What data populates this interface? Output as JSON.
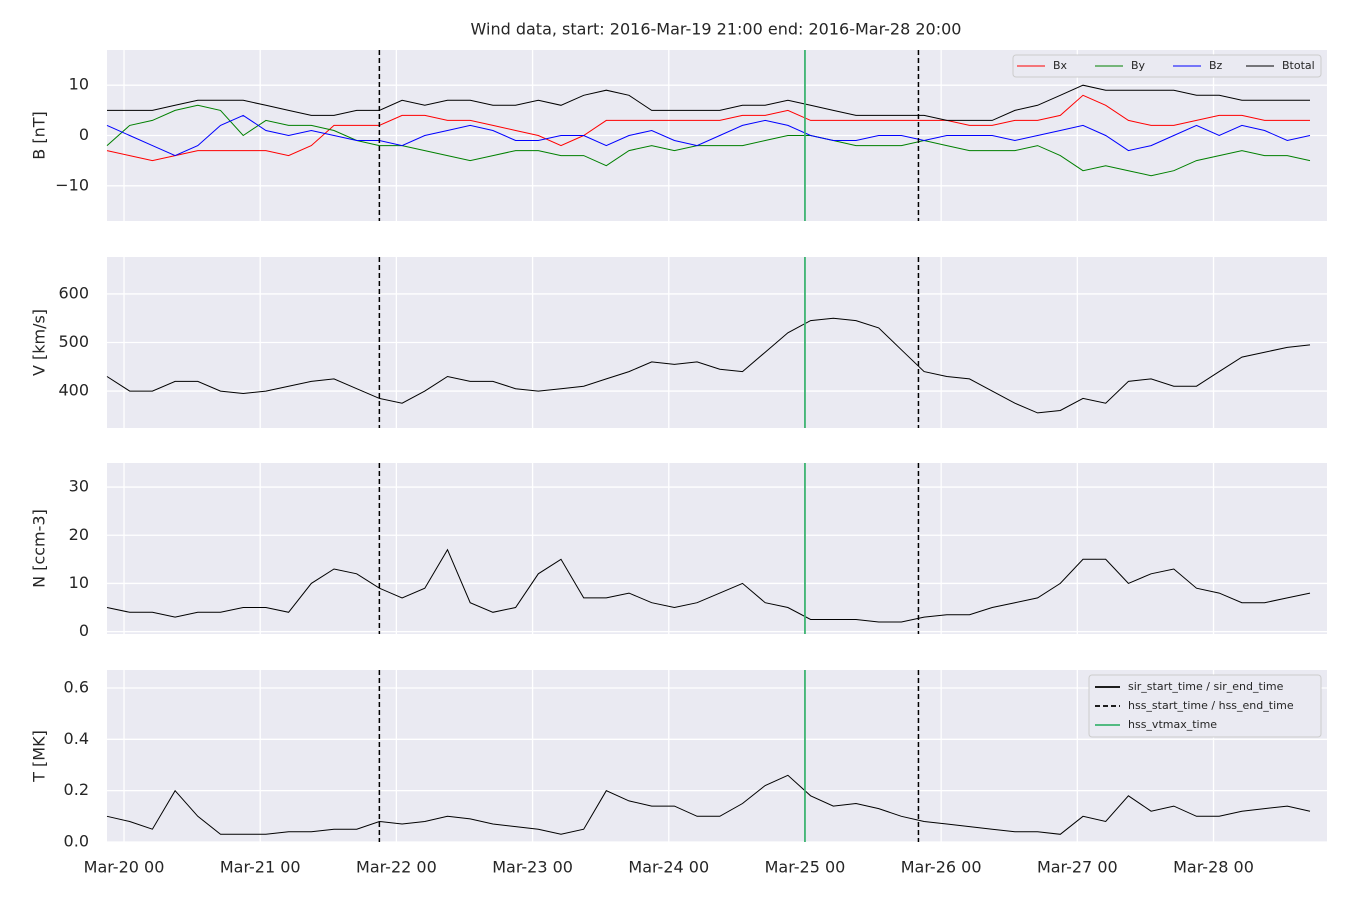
{
  "chart_data": [
    {
      "type": "line",
      "title": "Wind data, start: 2016-Mar-19 21:00  end: 2016-Mar-28 20:00",
      "ylabel": "B [nT]",
      "x": [
        "Mar-19 21",
        "Mar-20 01",
        "Mar-20 05",
        "Mar-20 09",
        "Mar-20 13",
        "Mar-20 17",
        "Mar-20 21",
        "Mar-21 01",
        "Mar-21 05",
        "Mar-21 09",
        "Mar-21 13",
        "Mar-21 17",
        "Mar-21 21",
        "Mar-22 01",
        "Mar-22 05",
        "Mar-22 09",
        "Mar-22 13",
        "Mar-22 17",
        "Mar-22 21",
        "Mar-23 01",
        "Mar-23 05",
        "Mar-23 09",
        "Mar-23 13",
        "Mar-23 17",
        "Mar-23 21",
        "Mar-24 01",
        "Mar-24 05",
        "Mar-24 09",
        "Mar-24 13",
        "Mar-24 17",
        "Mar-24 21",
        "Mar-25 01",
        "Mar-25 05",
        "Mar-25 09",
        "Mar-25 13",
        "Mar-25 17",
        "Mar-25 21",
        "Mar-26 01",
        "Mar-26 05",
        "Mar-26 09",
        "Mar-26 13",
        "Mar-26 17",
        "Mar-26 21",
        "Mar-27 01",
        "Mar-27 05",
        "Mar-27 09",
        "Mar-27 13",
        "Mar-27 17",
        "Mar-27 21",
        "Mar-28 01",
        "Mar-28 05",
        "Mar-28 09",
        "Mar-28 13",
        "Mar-28 17"
      ],
      "xlim": [
        "Mar-19 21",
        "Mar-28 20"
      ],
      "series": [
        {
          "name": "Bx",
          "color": "#ff0000",
          "values": [
            -3,
            -4,
            -5,
            -4,
            -3,
            -3,
            -3,
            -3,
            -4,
            -2,
            2,
            2,
            2,
            4,
            4,
            3,
            3,
            2,
            1,
            0,
            -2,
            0,
            3,
            3,
            3,
            3,
            3,
            3,
            4,
            4,
            5,
            3,
            3,
            3,
            3,
            3,
            3,
            3,
            2,
            2,
            3,
            3,
            4,
            8,
            6,
            3,
            2,
            2,
            3,
            4,
            4,
            3,
            3,
            3
          ]
        },
        {
          "name": "By",
          "color": "#008000",
          "values": [
            -2,
            2,
            3,
            5,
            6,
            5,
            0,
            3,
            2,
            2,
            1,
            -1,
            -2,
            -2,
            -3,
            -4,
            -5,
            -4,
            -3,
            -3,
            -4,
            -4,
            -6,
            -3,
            -2,
            -3,
            -2,
            -2,
            -2,
            -1,
            0,
            0,
            -1,
            -2,
            -2,
            -2,
            -1,
            -2,
            -3,
            -3,
            -3,
            -2,
            -4,
            -7,
            -6,
            -7,
            -8,
            -7,
            -5,
            -4,
            -3,
            -4,
            -4,
            -5
          ]
        },
        {
          "name": "Bz",
          "color": "#0000ff",
          "values": [
            2,
            0,
            -2,
            -4,
            -2,
            2,
            4,
            1,
            0,
            1,
            0,
            -1,
            -1,
            -2,
            0,
            1,
            2,
            1,
            -1,
            -1,
            0,
            0,
            -2,
            0,
            1,
            -1,
            -2,
            0,
            2,
            3,
            2,
            0,
            -1,
            -1,
            0,
            0,
            -1,
            0,
            0,
            0,
            -1,
            0,
            1,
            2,
            0,
            -3,
            -2,
            0,
            2,
            0,
            2,
            1,
            -1,
            0
          ]
        },
        {
          "name": "Btotal",
          "color": "#000000",
          "values": [
            5,
            5,
            5,
            6,
            7,
            7,
            7,
            6,
            5,
            4,
            4,
            5,
            5,
            7,
            6,
            7,
            7,
            6,
            6,
            7,
            6,
            8,
            9,
            8,
            5,
            5,
            5,
            5,
            6,
            6,
            7,
            6,
            5,
            4,
            4,
            4,
            4,
            3,
            3,
            3,
            5,
            6,
            8,
            10,
            9,
            9,
            9,
            9,
            8,
            8,
            7,
            7,
            7,
            7
          ]
        }
      ],
      "ylim": [
        -17,
        17
      ],
      "yticks": [
        {
          "value": -10,
          "label": "−10"
        },
        0,
        10
      ],
      "grid": true,
      "legend": "upper right"
    },
    {
      "type": "line",
      "ylabel": "V [km/s]",
      "x": [
        "Mar-19 21",
        "Mar-20 01",
        "Mar-20 05",
        "Mar-20 09",
        "Mar-20 13",
        "Mar-20 17",
        "Mar-20 21",
        "Mar-21 01",
        "Mar-21 05",
        "Mar-21 09",
        "Mar-21 13",
        "Mar-21 17",
        "Mar-21 21",
        "Mar-22 01",
        "Mar-22 05",
        "Mar-22 09",
        "Mar-22 13",
        "Mar-22 17",
        "Mar-22 21",
        "Mar-23 01",
        "Mar-23 05",
        "Mar-23 09",
        "Mar-23 13",
        "Mar-23 17",
        "Mar-23 21",
        "Mar-24 01",
        "Mar-24 05",
        "Mar-24 09",
        "Mar-24 13",
        "Mar-24 17",
        "Mar-24 21",
        "Mar-25 01",
        "Mar-25 05",
        "Mar-25 09",
        "Mar-25 13",
        "Mar-25 17",
        "Mar-25 21",
        "Mar-26 01",
        "Mar-26 05",
        "Mar-26 09",
        "Mar-26 13",
        "Mar-26 17",
        "Mar-26 21",
        "Mar-27 01",
        "Mar-27 05",
        "Mar-27 09",
        "Mar-27 13",
        "Mar-27 17",
        "Mar-27 21",
        "Mar-28 01",
        "Mar-28 05",
        "Mar-28 09",
        "Mar-28 13",
        "Mar-28 17"
      ],
      "xlim": [
        "Mar-19 21",
        "Mar-28 20"
      ],
      "color": "#000000",
      "values": [
        430,
        400,
        400,
        420,
        420,
        400,
        395,
        400,
        410,
        420,
        425,
        405,
        385,
        375,
        400,
        430,
        420,
        420,
        405,
        400,
        405,
        410,
        425,
        440,
        460,
        455,
        460,
        445,
        440,
        480,
        520,
        545,
        550,
        545,
        530,
        485,
        440,
        430,
        425,
        400,
        375,
        355,
        360,
        385,
        375,
        420,
        425,
        410,
        410,
        440,
        470,
        480,
        490,
        495
      ],
      "ylim": [
        324,
        676
      ],
      "yticks": [
        400,
        500,
        600
      ],
      "grid": true
    },
    {
      "type": "line",
      "ylabel": "N [ccm-3]",
      "x": [
        "Mar-19 21",
        "Mar-20 01",
        "Mar-20 05",
        "Mar-20 09",
        "Mar-20 13",
        "Mar-20 17",
        "Mar-20 21",
        "Mar-21 01",
        "Mar-21 05",
        "Mar-21 09",
        "Mar-21 13",
        "Mar-21 17",
        "Mar-21 21",
        "Mar-22 01",
        "Mar-22 05",
        "Mar-22 09",
        "Mar-22 13",
        "Mar-22 17",
        "Mar-22 21",
        "Mar-23 01",
        "Mar-23 05",
        "Mar-23 09",
        "Mar-23 13",
        "Mar-23 17",
        "Mar-23 21",
        "Mar-24 01",
        "Mar-24 05",
        "Mar-24 09",
        "Mar-24 13",
        "Mar-24 17",
        "Mar-24 21",
        "Mar-25 01",
        "Mar-25 05",
        "Mar-25 09",
        "Mar-25 13",
        "Mar-25 17",
        "Mar-25 21",
        "Mar-26 01",
        "Mar-26 05",
        "Mar-26 09",
        "Mar-26 13",
        "Mar-26 17",
        "Mar-26 21",
        "Mar-27 01",
        "Mar-27 05",
        "Mar-27 09",
        "Mar-27 13",
        "Mar-27 17",
        "Mar-27 21",
        "Mar-28 01",
        "Mar-28 05",
        "Mar-28 09",
        "Mar-28 13",
        "Mar-28 17"
      ],
      "xlim": [
        "Mar-19 21",
        "Mar-28 20"
      ],
      "color": "#000000",
      "values": [
        5,
        4,
        4,
        3,
        4,
        4,
        5,
        5,
        4,
        10,
        13,
        12,
        9,
        7,
        9,
        17,
        6,
        4,
        5,
        12,
        15,
        7,
        7,
        8,
        6,
        5,
        6,
        8,
        10,
        6,
        5,
        2.5,
        2.5,
        2.5,
        2,
        2,
        3,
        3.5,
        3.5,
        5,
        6,
        7,
        10,
        15,
        15,
        10,
        12,
        13,
        9,
        8,
        6,
        6,
        7,
        8
      ],
      "ylim": [
        -0.5,
        35
      ],
      "yticks": [
        0,
        10,
        20,
        30
      ],
      "grid": true
    },
    {
      "type": "line",
      "ylabel": "T [MK]",
      "x": [
        "Mar-19 21",
        "Mar-20 01",
        "Mar-20 05",
        "Mar-20 09",
        "Mar-20 13",
        "Mar-20 17",
        "Mar-20 21",
        "Mar-21 01",
        "Mar-21 05",
        "Mar-21 09",
        "Mar-21 13",
        "Mar-21 17",
        "Mar-21 21",
        "Mar-22 01",
        "Mar-22 05",
        "Mar-22 09",
        "Mar-22 13",
        "Mar-22 17",
        "Mar-22 21",
        "Mar-23 01",
        "Mar-23 05",
        "Mar-23 09",
        "Mar-23 13",
        "Mar-23 17",
        "Mar-23 21",
        "Mar-24 01",
        "Mar-24 05",
        "Mar-24 09",
        "Mar-24 13",
        "Mar-24 17",
        "Mar-24 21",
        "Mar-25 01",
        "Mar-25 05",
        "Mar-25 09",
        "Mar-25 13",
        "Mar-25 17",
        "Mar-25 21",
        "Mar-26 01",
        "Mar-26 05",
        "Mar-26 09",
        "Mar-26 13",
        "Mar-26 17",
        "Mar-26 21",
        "Mar-27 01",
        "Mar-27 05",
        "Mar-27 09",
        "Mar-27 13",
        "Mar-27 17",
        "Mar-27 21",
        "Mar-28 01",
        "Mar-28 05",
        "Mar-28 09",
        "Mar-28 13",
        "Mar-28 17"
      ],
      "xlim": [
        "Mar-19 21",
        "Mar-28 20"
      ],
      "color": "#000000",
      "values": [
        0.1,
        0.08,
        0.05,
        0.2,
        0.1,
        0.03,
        0.03,
        0.03,
        0.04,
        0.04,
        0.05,
        0.05,
        0.08,
        0.07,
        0.08,
        0.1,
        0.09,
        0.07,
        0.06,
        0.05,
        0.03,
        0.05,
        0.2,
        0.16,
        0.14,
        0.14,
        0.1,
        0.1,
        0.15,
        0.22,
        0.26,
        0.18,
        0.14,
        0.15,
        0.13,
        0.1,
        0.08,
        0.07,
        0.06,
        0.05,
        0.04,
        0.04,
        0.03,
        0.1,
        0.08,
        0.18,
        0.12,
        0.14,
        0.1,
        0.1,
        0.12,
        0.13,
        0.14,
        0.12
      ],
      "ylim": [
        0,
        0.67
      ],
      "yticks": [
        {
          "value": 0,
          "label": "0.0"
        },
        0.2,
        0.4,
        0.6
      ],
      "grid": true,
      "xticks": [
        "Mar-20 00",
        "Mar-21 00",
        "Mar-22 00",
        "Mar-23 00",
        "Mar-24 00",
        "Mar-25 00",
        "Mar-26 00",
        "Mar-27 00",
        "Mar-28 00"
      ],
      "legend": "upper right",
      "markers": [
        {
          "name": "sir_start_time / sir_end_time",
          "color": "#000000",
          "dashed": false,
          "x": []
        },
        {
          "name": "hss_start_time / hss_end_time",
          "color": "#000000",
          "dashed": true,
          "x": [
            "Mar-21 21",
            "Mar-25 20"
          ]
        },
        {
          "name": "hss_vtmax_time",
          "color": "#3cb371",
          "dashed": false,
          "x": [
            "Mar-25 00"
          ]
        }
      ]
    }
  ]
}
